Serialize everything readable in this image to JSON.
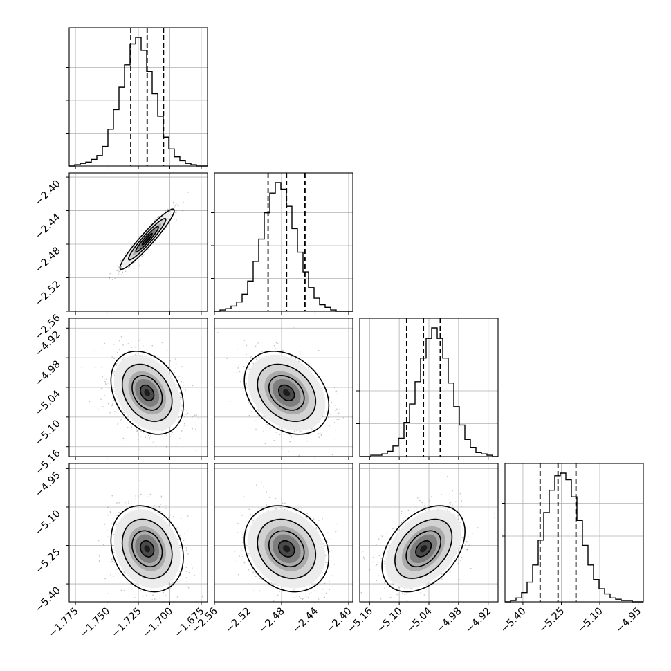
{
  "chart_data": {
    "type": "corner",
    "parameters": 4,
    "grid": true,
    "ticks": [
      [
        "−1.775",
        "−1.750",
        "−1.725",
        "−1.700",
        "−1.675"
      ],
      [
        "−2.56",
        "−2.52",
        "−2.48",
        "−2.44",
        "−2.40"
      ],
      [
        "−5.16",
        "−5.10",
        "−5.04",
        "−4.98",
        "−4.92"
      ],
      [
        "−5.40",
        "−5.25",
        "−5.10",
        "−4.95"
      ]
    ],
    "ranges": [
      [
        -1.78,
        -1.67
      ],
      [
        -2.56,
        -2.395
      ],
      [
        -5.18,
        -4.9
      ],
      [
        -5.47,
        -4.93
      ]
    ],
    "quantiles": [
      [
        -1.731,
        -1.718,
        -1.705
      ],
      [
        -2.496,
        -2.474,
        -2.452
      ],
      [
        -5.085,
        -5.051,
        -5.017
      ],
      [
        -5.333,
        -5.263,
        -5.193
      ]
    ],
    "histograms": [
      [
        0,
        1,
        2,
        3,
        5,
        8,
        15,
        28,
        43,
        60,
        77,
        93,
        98,
        88,
        72,
        55,
        38,
        22,
        13,
        7,
        4,
        2,
        1,
        0,
        0
      ],
      [
        0,
        1,
        2,
        4,
        7,
        13,
        23,
        38,
        55,
        75,
        90,
        98,
        93,
        80,
        63,
        45,
        30,
        18,
        10,
        5,
        3,
        1,
        0,
        0,
        0
      ],
      [
        0,
        0,
        1,
        1,
        2,
        4,
        8,
        14,
        26,
        40,
        57,
        75,
        90,
        98,
        90,
        75,
        56,
        38,
        24,
        13,
        7,
        3,
        2,
        1,
        0
      ],
      [
        0,
        1,
        3,
        7,
        15,
        28,
        47,
        68,
        85,
        96,
        98,
        93,
        80,
        62,
        43,
        28,
        17,
        10,
        6,
        3,
        2,
        1,
        1,
        0,
        0
      ]
    ],
    "pairs": [
      {
        "x": 0,
        "y": 1,
        "mean": [
          -1.718,
          -2.474
        ],
        "sd": [
          0.009,
          0.015
        ],
        "rho": 0.95
      },
      {
        "x": 0,
        "y": 2,
        "mean": [
          -1.718,
          -5.051
        ],
        "sd": [
          0.012,
          0.035
        ],
        "rho": -0.3
      },
      {
        "x": 1,
        "y": 2,
        "mean": [
          -2.474,
          -5.051
        ],
        "sd": [
          0.021,
          0.035
        ],
        "rho": -0.3
      },
      {
        "x": 0,
        "y": 3,
        "mean": [
          -1.718,
          -5.263
        ],
        "sd": [
          0.012,
          0.07
        ],
        "rho": -0.2
      },
      {
        "x": 1,
        "y": 3,
        "mean": [
          -2.474,
          -5.263
        ],
        "sd": [
          0.021,
          0.07
        ],
        "rho": -0.2
      },
      {
        "x": 2,
        "y": 3,
        "mean": [
          -5.051,
          -5.263
        ],
        "sd": [
          0.035,
          0.07
        ],
        "rho": 0.4
      }
    ]
  }
}
